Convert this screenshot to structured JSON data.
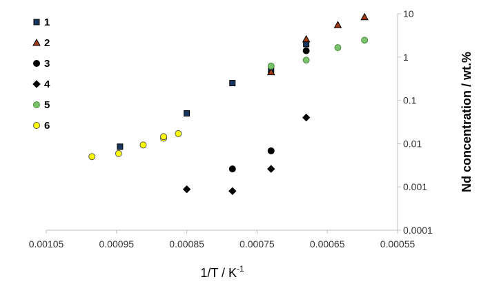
{
  "chart_data": {
    "type": "scatter",
    "title": "",
    "xlabel": "1/T / K",
    "xlabel_sup": "-1",
    "ylabel": "Nd concentration / wt.%",
    "x_reversed": true,
    "xlim": [
      0.00105,
      0.00055
    ],
    "ylim": [
      0.0001,
      10
    ],
    "y_scale": "log",
    "grid": false,
    "legend_position": "top-left",
    "x_ticks": [
      "0.00105",
      "0.00095",
      "0.00085",
      "0.00075",
      "0.00065",
      "0.00055"
    ],
    "x_tick_values": [
      0.00105,
      0.00095,
      0.00085,
      0.00075,
      0.00065,
      0.00055
    ],
    "y_ticks": [
      "10",
      "1",
      "0.1",
      "0.01",
      "0.001",
      "0.0001"
    ],
    "y_tick_values": [
      10,
      1,
      0.1,
      0.01,
      0.001,
      0.0001
    ],
    "series": [
      {
        "name": "1",
        "marker": "square",
        "color": "#17375e",
        "edge": "#000000",
        "points": [
          {
            "x": 0.000945,
            "y": 0.0085
          },
          {
            "x": 0.00085,
            "y": 0.05
          },
          {
            "x": 0.000785,
            "y": 0.25
          },
          {
            "x": 0.00073,
            "y": 0.5
          },
          {
            "x": 0.00068,
            "y": 2.0
          }
        ]
      },
      {
        "name": "2",
        "marker": "triangle",
        "color": "#9c3a14",
        "edge": "#000000",
        "points": [
          {
            "x": 0.00073,
            "y": 0.45
          },
          {
            "x": 0.00068,
            "y": 2.6
          },
          {
            "x": 0.000635,
            "y": 5.5
          },
          {
            "x": 0.000597,
            "y": 8.4
          }
        ]
      },
      {
        "name": "3",
        "marker": "circle",
        "color": "#000000",
        "edge": "#000000",
        "points": [
          {
            "x": 0.000785,
            "y": 0.0026
          },
          {
            "x": 0.00073,
            "y": 0.0068
          },
          {
            "x": 0.00068,
            "y": 1.4
          }
        ]
      },
      {
        "name": "4",
        "marker": "diamond",
        "color": "#000000",
        "edge": "#000000",
        "points": [
          {
            "x": 0.00085,
            "y": 0.00088
          },
          {
            "x": 0.000785,
            "y": 0.0008
          },
          {
            "x": 0.00073,
            "y": 0.0026
          },
          {
            "x": 0.00068,
            "y": 0.04
          }
        ]
      },
      {
        "name": "5",
        "marker": "circle",
        "color": "#77c26b",
        "edge": "#4f8b45",
        "points": [
          {
            "x": 0.00073,
            "y": 0.62
          },
          {
            "x": 0.00068,
            "y": 0.85
          },
          {
            "x": 0.000635,
            "y": 1.65
          },
          {
            "x": 0.000597,
            "y": 2.45
          }
        ]
      },
      {
        "name": "6",
        "marker": "circle",
        "color": "#ffff00",
        "edge": "#555555",
        "points": [
          {
            "x": 0.000985,
            "y": 0.005
          },
          {
            "x": 0.000947,
            "y": 0.0059
          },
          {
            "x": 0.000912,
            "y": 0.0093
          },
          {
            "x": 0.000883,
            "y": 0.0133
          },
          {
            "x": 0.000883,
            "y": 0.0145
          },
          {
            "x": 0.000862,
            "y": 0.017
          }
        ]
      }
    ]
  }
}
